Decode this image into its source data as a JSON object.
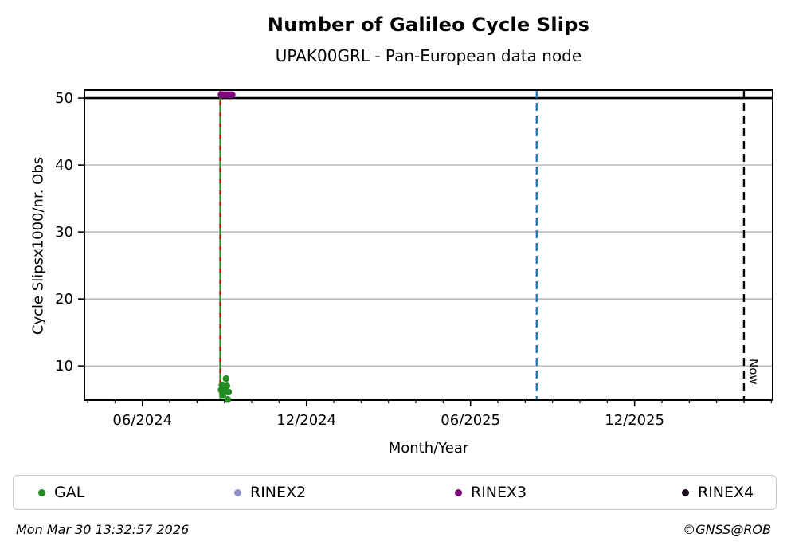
{
  "chart_data": {
    "type": "scatter",
    "title": "Number of Galileo Cycle Slips",
    "subtitle": "UPAK00GRL - Pan-European data node",
    "xlabel": "Month/Year",
    "ylabel": "Cycle Slipsx1000/nr. Obs",
    "x_unit": "months_since_2024-01-01",
    "xlim": [
      2.88,
      28.05
    ],
    "ylim": [
      4.9,
      51.2
    ],
    "grid": true,
    "grid_color": "#b4b4b4",
    "x_major_ticks": [
      {
        "pos": 5,
        "label": "06/2024"
      },
      {
        "pos": 11,
        "label": "12/2024"
      },
      {
        "pos": 17,
        "label": "06/2025"
      },
      {
        "pos": 23,
        "label": "12/2025"
      }
    ],
    "x_minor_ticks": [
      3,
      4,
      5,
      6,
      7,
      8,
      9,
      10,
      11,
      12,
      13,
      14,
      15,
      16,
      17,
      18,
      19,
      20,
      21,
      22,
      23,
      24,
      25,
      26,
      27,
      28
    ],
    "y_ticks": [
      10,
      20,
      30,
      40,
      50
    ],
    "grid_y_values": [
      10,
      20,
      30,
      40
    ],
    "threshold_line": {
      "y": 50,
      "color": "#000000"
    },
    "vlines": [
      {
        "name": "data-start-line",
        "x": 7.85,
        "color": "#228B22",
        "style": "solid",
        "overlay_color": "#d40000",
        "overlay_style": "dashed"
      },
      {
        "name": "event-line",
        "x": 19.42,
        "color": "#1f77b4",
        "style": "dashed"
      },
      {
        "name": "now-line",
        "x": 27.0,
        "color": "#000000",
        "style": "dashed",
        "label": "Now"
      }
    ],
    "legend_position": "bottom",
    "series": [
      {
        "name": "GAL",
        "color": "#228B22",
        "marker": "circle",
        "points": [
          [
            7.88,
            6.4
          ],
          [
            7.91,
            7.1
          ],
          [
            7.94,
            5.6
          ],
          [
            8.0,
            6.2
          ],
          [
            8.06,
            8.1
          ],
          [
            8.09,
            7.0
          ],
          [
            8.12,
            5.0
          ],
          [
            8.15,
            6.1
          ]
        ]
      },
      {
        "name": "RINEX2",
        "color": "#9191cf",
        "marker": "circle",
        "points": []
      },
      {
        "name": "RINEX3",
        "color": "#7d067d",
        "marker": "circle",
        "points": [
          [
            7.88,
            50.5
          ],
          [
            7.92,
            50.5
          ],
          [
            7.96,
            50.5
          ],
          [
            8.0,
            50.5
          ],
          [
            8.04,
            50.5
          ],
          [
            8.08,
            50.5
          ],
          [
            8.12,
            50.5
          ],
          [
            8.16,
            50.5
          ],
          [
            8.2,
            50.5
          ],
          [
            8.24,
            50.5
          ],
          [
            8.28,
            50.5
          ]
        ]
      },
      {
        "name": "RINEX4",
        "color": "#1c0a1c",
        "marker": "circle",
        "points": []
      }
    ]
  },
  "footer": {
    "generated": "Mon Mar 30 13:32:57 2026",
    "credit": "©GNSS@ROB"
  }
}
